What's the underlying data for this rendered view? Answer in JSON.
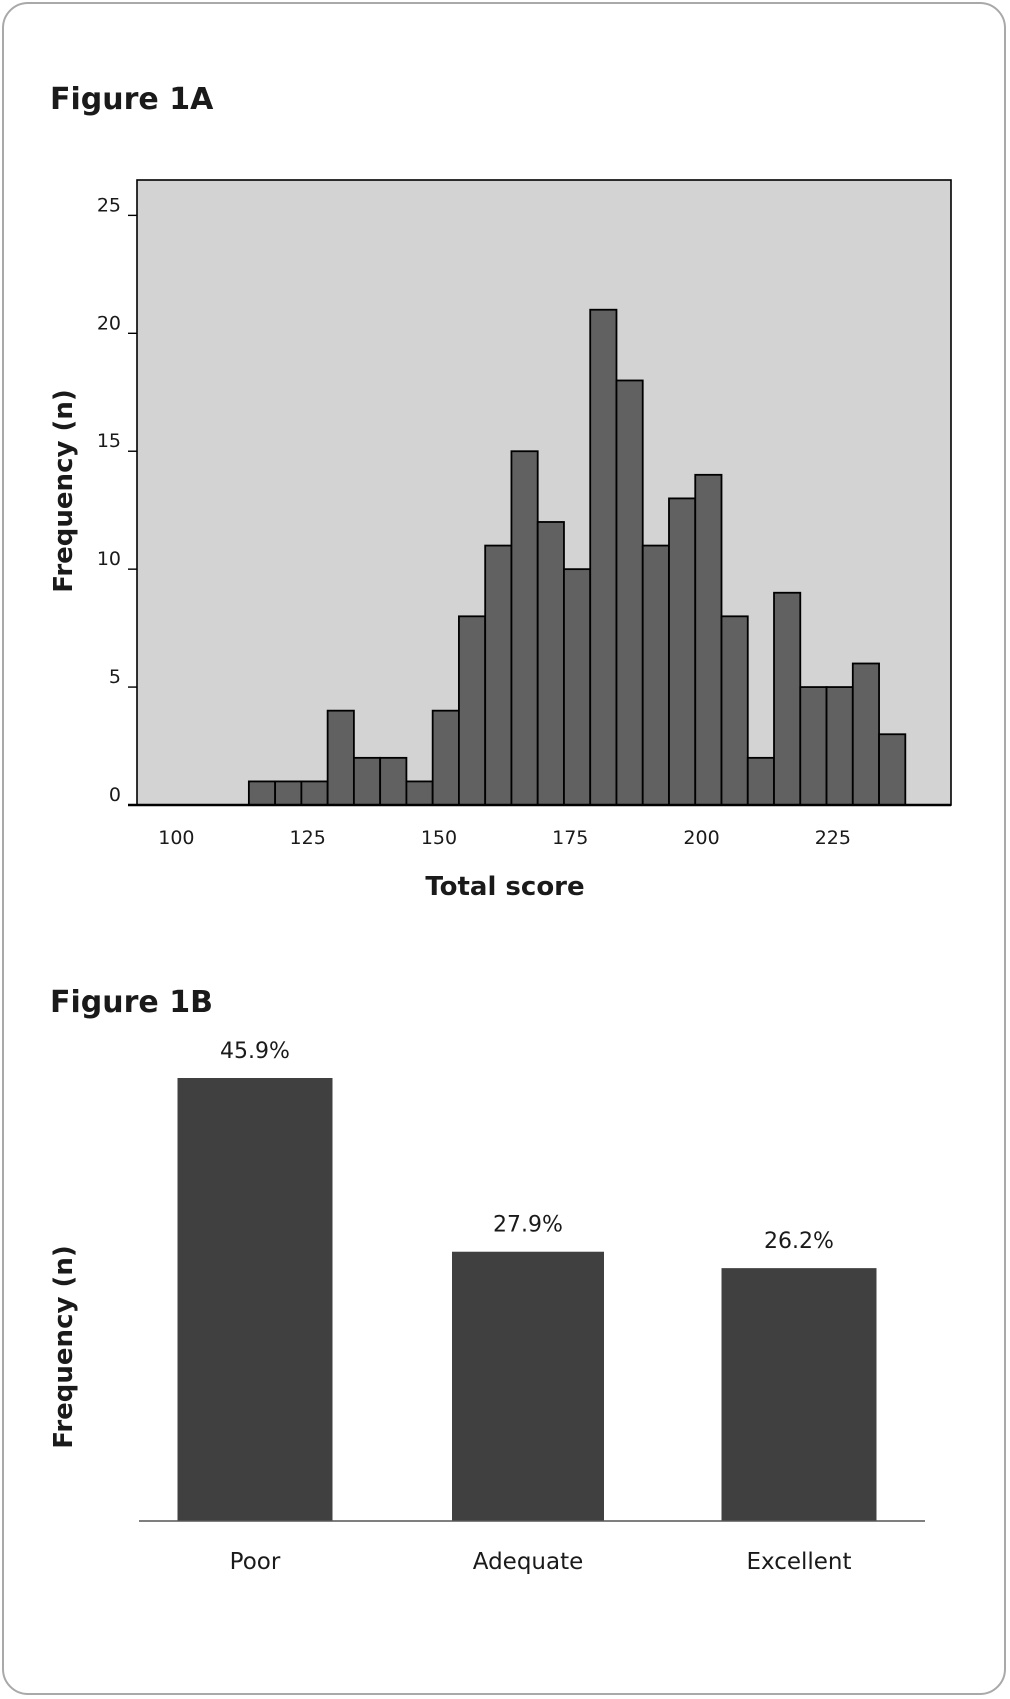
{
  "chart_data": [
    {
      "type": "bar",
      "title": "Figure 1A",
      "xlabel": "Total score",
      "ylabel": "Frequency (n)",
      "xlim": [
        92.5,
        247.5
      ],
      "ylim": [
        0,
        26.5
      ],
      "xticks": [
        "100",
        "125",
        "150",
        "175",
        "200",
        "225"
      ],
      "yticks": [
        "0",
        "5",
        "10",
        "15",
        "20",
        "25"
      ],
      "grid": false,
      "colors": {
        "plot_bg": "#d3d3d3",
        "bar": "#616161",
        "edge": "#000000"
      },
      "bins": [
        {
          "x0": 113.8,
          "x1": 118.8,
          "value": 1
        },
        {
          "x0": 118.8,
          "x1": 123.8,
          "value": 1
        },
        {
          "x0": 123.8,
          "x1": 128.8,
          "value": 1
        },
        {
          "x0": 128.8,
          "x1": 133.8,
          "value": 4
        },
        {
          "x0": 133.8,
          "x1": 138.8,
          "value": 2
        },
        {
          "x0": 138.8,
          "x1": 143.8,
          "value": 2
        },
        {
          "x0": 143.8,
          "x1": 148.8,
          "value": 1
        },
        {
          "x0": 148.8,
          "x1": 153.8,
          "value": 4
        },
        {
          "x0": 153.8,
          "x1": 158.8,
          "value": 8
        },
        {
          "x0": 158.8,
          "x1": 163.8,
          "value": 11
        },
        {
          "x0": 163.8,
          "x1": 168.8,
          "value": 15
        },
        {
          "x0": 168.8,
          "x1": 173.8,
          "value": 12
        },
        {
          "x0": 173.8,
          "x1": 178.8,
          "value": 10
        },
        {
          "x0": 178.8,
          "x1": 183.8,
          "value": 21
        },
        {
          "x0": 183.8,
          "x1": 188.8,
          "value": 18
        },
        {
          "x0": 188.8,
          "x1": 193.8,
          "value": 11
        },
        {
          "x0": 193.8,
          "x1": 198.8,
          "value": 13
        },
        {
          "x0": 198.8,
          "x1": 203.8,
          "value": 14
        },
        {
          "x0": 203.8,
          "x1": 208.8,
          "value": 8
        },
        {
          "x0": 208.8,
          "x1": 213.8,
          "value": 2
        },
        {
          "x0": 213.8,
          "x1": 218.8,
          "value": 9
        },
        {
          "x0": 218.8,
          "x1": 223.8,
          "value": 5
        },
        {
          "x0": 223.8,
          "x1": 228.8,
          "value": 5
        },
        {
          "x0": 228.8,
          "x1": 233.8,
          "value": 6
        },
        {
          "x0": 233.8,
          "x1": 238.8,
          "value": 3
        }
      ]
    },
    {
      "type": "bar",
      "title": "Figure 1B",
      "xlabel": "",
      "ylabel": "Frequency (n)",
      "ylim": [
        0,
        50
      ],
      "categories": [
        "Poor",
        "Adequate",
        "Excellent"
      ],
      "values": [
        45.9,
        27.9,
        26.2
      ],
      "data_labels": [
        "45.9%",
        "27.9%",
        "26.2%"
      ],
      "colors": {
        "bar": "#404040"
      }
    }
  ]
}
